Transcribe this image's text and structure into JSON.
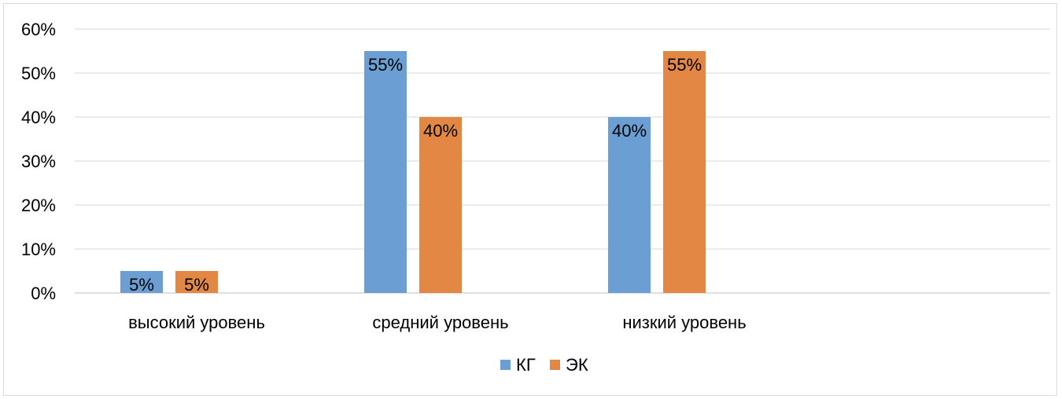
{
  "chart_data": {
    "type": "bar",
    "categories": [
      "высокий уровень",
      "средний уровень",
      "низкий уровень"
    ],
    "series": [
      {
        "name": "КГ",
        "values": [
          5,
          55,
          40
        ],
        "color": "#6b9fd4"
      },
      {
        "name": "ЭК",
        "values": [
          5,
          40,
          55
        ],
        "color": "#e28744"
      }
    ],
    "ylim": [
      0,
      60
    ],
    "yticks": [
      "0%",
      "10%",
      "20%",
      "30%",
      "40%",
      "50%",
      "60%"
    ],
    "value_suffix": "%",
    "grid": true,
    "legend_position": "bottom"
  }
}
